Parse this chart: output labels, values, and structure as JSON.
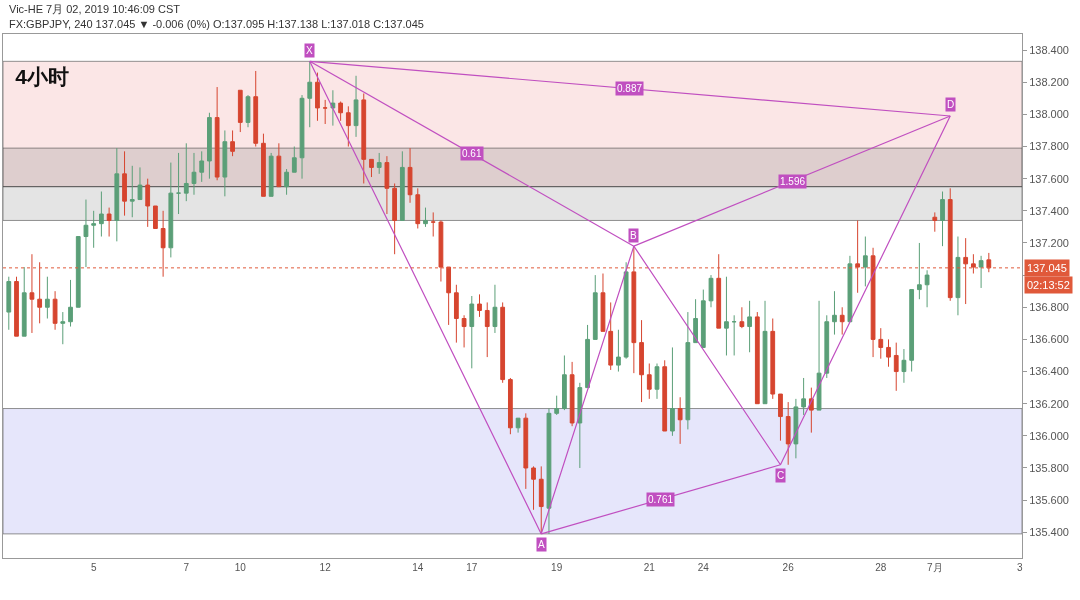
{
  "chart_data": {
    "type": "candlestick",
    "title": "4小时",
    "subtitle": "Vic-HE 7月 02, 2019 10:46:09 CST",
    "annotations": [
      "FX:GBPJPY, 240 137.045 ▼ -0.006 (0%) O:137.095 H:137.138 L:137.018 C:137.045",
      "02:13:52",
      "0.61",
      "0.887",
      "0.761",
      "1.596"
    ],
    "categories": [
      null,
      null,
      null,
      null,
      null,
      null,
      null,
      null,
      null,
      null,
      null,
      "5",
      null,
      null,
      null,
      null,
      null,
      null,
      null,
      null,
      null,
      null,
      null,
      "7",
      null,
      null,
      null,
      null,
      null,
      null,
      "10",
      null,
      null,
      null,
      null,
      null,
      null,
      null,
      null,
      null,
      null,
      "12",
      null,
      null,
      null,
      null,
      null,
      null,
      null,
      null,
      null,
      null,
      null,
      "14",
      null,
      null,
      null,
      null,
      null,
      null,
      "17",
      null,
      null,
      null,
      null,
      null,
      null,
      null,
      null,
      null,
      null,
      "19",
      null,
      null,
      null,
      null,
      null,
      null,
      null,
      null,
      null,
      null,
      null,
      "21",
      null,
      null,
      null,
      null,
      null,
      null,
      "24",
      null,
      null,
      null,
      null,
      null,
      null,
      null,
      null,
      null,
      null,
      "26",
      null,
      null,
      null,
      null,
      null,
      null,
      null,
      null,
      null,
      null,
      null,
      "28",
      null,
      null,
      null,
      null,
      null,
      null,
      "7月",
      null,
      null,
      null,
      null,
      null,
      null,
      null,
      null,
      null,
      null,
      "3"
    ],
    "ohlc": [
      [
        136.77,
        136.99,
        136.66,
        136.96
      ],
      [
        136.96,
        136.99,
        136.62,
        136.62
      ],
      [
        136.62,
        137.05,
        136.62,
        136.89
      ],
      [
        136.89,
        137.13,
        136.64,
        136.85
      ],
      [
        136.85,
        137.08,
        136.7,
        136.8
      ],
      [
        136.8,
        136.99,
        136.73,
        136.85
      ],
      [
        136.85,
        136.9,
        136.66,
        136.7
      ],
      [
        136.7,
        136.77,
        136.57,
        136.71
      ],
      [
        136.71,
        136.97,
        136.68,
        136.8
      ],
      [
        136.8,
        137.24,
        136.8,
        137.24
      ],
      [
        137.24,
        137.47,
        137.05,
        137.31
      ],
      [
        137.31,
        137.4,
        137.17,
        137.32
      ],
      [
        137.32,
        137.52,
        137.24,
        137.38
      ],
      [
        137.38,
        137.42,
        137.24,
        137.34
      ],
      [
        137.34,
        137.79,
        137.21,
        137.63
      ],
      [
        137.63,
        137.77,
        137.37,
        137.46
      ],
      [
        137.46,
        137.68,
        137.36,
        137.47
      ],
      [
        137.47,
        137.67,
        137.47,
        137.56
      ],
      [
        137.56,
        137.6,
        137.3,
        137.43
      ],
      [
        137.43,
        137.43,
        137.29,
        137.29
      ],
      [
        137.29,
        137.4,
        136.99,
        137.17
      ],
      [
        137.17,
        137.7,
        137.11,
        137.51
      ],
      [
        137.51,
        137.76,
        137.38,
        137.51
      ],
      [
        137.51,
        137.82,
        137.46,
        137.57
      ],
      [
        137.57,
        137.76,
        137.5,
        137.64
      ],
      [
        137.64,
        137.77,
        137.58,
        137.71
      ],
      [
        137.71,
        138.01,
        137.6,
        137.98
      ],
      [
        137.98,
        138.17,
        137.59,
        137.61
      ],
      [
        137.61,
        137.9,
        137.49,
        137.83
      ],
      [
        137.83,
        137.9,
        137.74,
        137.77
      ],
      [
        138.15,
        138.15,
        137.89,
        137.95
      ],
      [
        137.95,
        138.12,
        137.92,
        138.11
      ],
      [
        138.11,
        138.27,
        137.8,
        137.82
      ],
      [
        137.82,
        137.88,
        137.49,
        137.49
      ],
      [
        137.49,
        137.76,
        137.49,
        137.74
      ],
      [
        137.74,
        137.82,
        137.55,
        137.55
      ],
      [
        137.55,
        137.66,
        137.5,
        137.64
      ],
      [
        137.64,
        137.8,
        137.64,
        137.73
      ],
      [
        137.73,
        138.12,
        137.6,
        138.1
      ],
      [
        138.1,
        138.33,
        137.92,
        138.2
      ],
      [
        138.2,
        138.26,
        137.96,
        138.04
      ],
      [
        138.04,
        138.09,
        137.94,
        138.04
      ],
      [
        138.04,
        138.15,
        137.93,
        138.07
      ],
      [
        138.07,
        138.08,
        137.96,
        138.01
      ],
      [
        138.01,
        138.05,
        137.8,
        137.93
      ],
      [
        137.93,
        138.24,
        137.86,
        138.09
      ],
      [
        138.09,
        138.13,
        137.57,
        137.72
      ],
      [
        137.72,
        137.72,
        137.61,
        137.67
      ],
      [
        137.67,
        137.76,
        137.63,
        137.7
      ],
      [
        137.7,
        137.74,
        137.38,
        137.54
      ],
      [
        137.54,
        137.57,
        137.13,
        137.34
      ],
      [
        137.34,
        137.77,
        137.34,
        137.67
      ],
      [
        137.67,
        137.79,
        137.45,
        137.5
      ],
      [
        137.5,
        137.54,
        137.29,
        137.32
      ],
      [
        137.32,
        137.42,
        137.3,
        137.34
      ],
      [
        137.33,
        137.39,
        137.24,
        137.33
      ],
      [
        137.33,
        137.34,
        136.96,
        137.05
      ],
      [
        137.05,
        137.05,
        136.69,
        136.89
      ],
      [
        136.89,
        136.94,
        136.58,
        136.73
      ],
      [
        136.73,
        136.75,
        136.55,
        136.68
      ],
      [
        136.68,
        136.87,
        136.42,
        136.82
      ],
      [
        136.82,
        136.88,
        136.74,
        136.78
      ],
      [
        136.78,
        136.83,
        136.49,
        136.68
      ],
      [
        136.68,
        136.94,
        136.64,
        136.8
      ],
      [
        136.8,
        136.83,
        136.33,
        136.35
      ],
      [
        136.35,
        136.36,
        136.01,
        136.05
      ],
      [
        136.05,
        136.11,
        136.02,
        136.11
      ],
      [
        136.11,
        136.14,
        135.67,
        135.8
      ],
      [
        135.8,
        135.81,
        135.54,
        135.73
      ],
      [
        135.73,
        135.81,
        135.39,
        135.56
      ],
      [
        135.55,
        136.17,
        135.39,
        136.14
      ],
      [
        136.14,
        136.25,
        136.13,
        136.17
      ],
      [
        136.17,
        136.5,
        136.16,
        136.38
      ],
      [
        136.38,
        136.46,
        136.06,
        136.08
      ],
      [
        136.08,
        136.33,
        135.8,
        136.3
      ],
      [
        136.3,
        136.69,
        136.3,
        136.6
      ],
      [
        136.6,
        137.0,
        136.6,
        136.89
      ],
      [
        136.89,
        137.01,
        136.65,
        136.65
      ],
      [
        136.65,
        136.83,
        136.41,
        136.44
      ],
      [
        136.44,
        136.66,
        136.4,
        136.49
      ],
      [
        136.49,
        137.08,
        136.48,
        137.02
      ],
      [
        137.02,
        137.18,
        136.39,
        136.58
      ],
      [
        136.58,
        136.72,
        136.21,
        136.38
      ],
      [
        136.38,
        136.45,
        136.23,
        136.29
      ],
      [
        136.29,
        136.45,
        136.23,
        136.43
      ],
      [
        136.43,
        136.47,
        136.03,
        136.03
      ],
      [
        136.03,
        136.55,
        136.0,
        136.17
      ],
      [
        136.17,
        136.24,
        135.95,
        136.1
      ],
      [
        136.1,
        136.77,
        136.04,
        136.58
      ],
      [
        136.58,
        136.85,
        136.58,
        136.73
      ],
      [
        136.55,
        136.91,
        136.55,
        136.84
      ],
      [
        136.84,
        137.0,
        136.8,
        136.98
      ],
      [
        136.98,
        137.13,
        136.67,
        136.67
      ],
      [
        136.67,
        136.99,
        136.5,
        136.71
      ],
      [
        136.71,
        136.75,
        136.5,
        136.71
      ],
      [
        136.71,
        136.8,
        136.67,
        136.68
      ],
      [
        136.68,
        136.84,
        136.52,
        136.74
      ],
      [
        136.74,
        136.77,
        136.2,
        136.2
      ],
      [
        136.2,
        136.84,
        136.2,
        136.65
      ],
      [
        136.65,
        136.73,
        136.23,
        136.26
      ],
      [
        136.26,
        136.26,
        135.97,
        136.12
      ],
      [
        136.12,
        136.21,
        135.82,
        135.95
      ],
      [
        135.95,
        136.23,
        135.86,
        136.18
      ],
      [
        136.18,
        136.36,
        136.13,
        136.23
      ],
      [
        136.23,
        136.3,
        136.02,
        136.16
      ],
      [
        136.16,
        136.84,
        136.16,
        136.39
      ],
      [
        136.39,
        136.75,
        136.36,
        136.71
      ],
      [
        136.71,
        136.9,
        136.63,
        136.75
      ],
      [
        136.75,
        136.8,
        136.63,
        136.71
      ],
      [
        136.71,
        137.12,
        136.71,
        137.07
      ],
      [
        137.07,
        137.34,
        136.89,
        137.05
      ],
      [
        137.05,
        137.24,
        136.93,
        137.12
      ],
      [
        137.12,
        137.17,
        136.49,
        136.6
      ],
      [
        136.6,
        136.67,
        136.48,
        136.55
      ],
      [
        136.55,
        136.6,
        136.43,
        136.49
      ],
      [
        136.5,
        136.58,
        136.28,
        136.4
      ],
      [
        136.4,
        136.54,
        136.33,
        136.47
      ],
      [
        136.47,
        136.91,
        136.4,
        136.91
      ],
      [
        136.91,
        137.2,
        136.85,
        136.94
      ],
      [
        136.94,
        137.03,
        136.8,
        137.0
      ],
      [
        137.36,
        137.39,
        137.27,
        137.34
      ],
      [
        137.34,
        137.52,
        137.18,
        137.47
      ],
      [
        137.47,
        137.54,
        136.84,
        136.86
      ],
      [
        136.86,
        137.24,
        136.75,
        137.11
      ],
      [
        137.11,
        137.23,
        136.82,
        137.07
      ],
      [
        137.07,
        137.13,
        137.01,
        137.05
      ],
      [
        137.05,
        137.12,
        136.92,
        137.09
      ],
      [
        137.095,
        137.138,
        137.018,
        137.045
      ],
      null,
      null,
      null,
      null
    ],
    "series": [
      {
        "type": "line",
        "color": "#c04fc0",
        "values": [
          null,
          null,
          null,
          null,
          null,
          null,
          null,
          null,
          null,
          null,
          null,
          null,
          null,
          null,
          null,
          null,
          null,
          null,
          null,
          null,
          null,
          null,
          null,
          null,
          null,
          null,
          null,
          null,
          null,
          null,
          null,
          null,
          null,
          null,
          null,
          null,
          null,
          null,
          null,
          138.33,
          null,
          null,
          null,
          null,
          null,
          null,
          null,
          null,
          null,
          null,
          null,
          null,
          null,
          null,
          null,
          null,
          null,
          null,
          null,
          null,
          null,
          null,
          null,
          null,
          null,
          null,
          null,
          null,
          null,
          135.39,
          null,
          null,
          null,
          null,
          null,
          null,
          null,
          null,
          null,
          null,
          null,
          137.18,
          null,
          null,
          null,
          null,
          null,
          null,
          null,
          null,
          null,
          null,
          null,
          null,
          null,
          null,
          null,
          null,
          null,
          null,
          135.82,
          null,
          null,
          null,
          null,
          null,
          null,
          null,
          null,
          null,
          null,
          null,
          null,
          null,
          null,
          null,
          null,
          null,
          null,
          null,
          null,
          null,
          137.99,
          null,
          null,
          null,
          null,
          null,
          null,
          null,
          null,
          null
        ],
        "value_labels": [
          null,
          null,
          null,
          null,
          null,
          null,
          null,
          null,
          null,
          null,
          null,
          null,
          null,
          null,
          null,
          null,
          null,
          null,
          null,
          null,
          null,
          null,
          null,
          null,
          null,
          null,
          null,
          null,
          null,
          null,
          null,
          null,
          null,
          null,
          null,
          null,
          null,
          null,
          null,
          "X",
          null,
          null,
          null,
          null,
          null,
          null,
          null,
          null,
          null,
          null,
          null,
          null,
          null,
          null,
          null,
          null,
          null,
          null,
          null,
          null,
          null,
          null,
          null,
          null,
          null,
          null,
          null,
          null,
          null,
          "A",
          null,
          null,
          null,
          null,
          null,
          null,
          null,
          null,
          null,
          null,
          null,
          "B",
          null,
          null,
          null,
          null,
          null,
          null,
          null,
          null,
          null,
          null,
          null,
          null,
          null,
          null,
          null,
          null,
          null,
          null,
          "C",
          null,
          null,
          null,
          null,
          null,
          null,
          null,
          null,
          null,
          null,
          null,
          null,
          null,
          null,
          null,
          null,
          null,
          null,
          null,
          null,
          null,
          "D",
          null,
          null,
          null,
          null,
          null,
          null,
          null,
          null,
          null
        ]
      },
      {
        "type": "line",
        "color": "#c04fc0",
        "values": [
          null,
          null,
          null,
          null,
          null,
          null,
          null,
          null,
          null,
          null,
          null,
          null,
          null,
          null,
          null,
          null,
          null,
          null,
          null,
          null,
          null,
          null,
          null,
          null,
          null,
          null,
          null,
          null,
          null,
          null,
          null,
          null,
          null,
          null,
          null,
          null,
          null,
          null,
          null,
          138.33,
          null,
          null,
          null,
          null,
          null,
          null,
          null,
          null,
          null,
          null,
          null,
          null,
          null,
          null,
          null,
          null,
          null,
          null,
          null,
          null,
          null,
          null,
          null,
          null,
          null,
          null,
          null,
          null,
          null,
          null,
          null,
          null,
          null,
          null,
          null,
          null,
          null,
          null,
          null,
          null,
          null,
          137.18,
          null,
          null,
          null,
          null,
          null,
          null,
          null,
          null,
          null,
          null,
          null,
          null,
          null,
          null,
          null,
          null,
          null,
          null,
          null,
          null,
          null,
          null,
          null,
          null,
          null,
          null,
          null,
          null,
          null,
          null,
          null,
          null,
          null,
          null,
          null,
          null,
          null,
          null,
          null,
          null,
          null,
          null,
          null,
          null,
          null,
          null,
          null,
          null,
          null,
          null
        ]
      },
      {
        "type": "line",
        "color": "#c04fc0",
        "values": [
          null,
          null,
          null,
          null,
          null,
          null,
          null,
          null,
          null,
          null,
          null,
          null,
          null,
          null,
          null,
          null,
          null,
          null,
          null,
          null,
          null,
          null,
          null,
          null,
          null,
          null,
          null,
          null,
          null,
          null,
          null,
          null,
          null,
          null,
          null,
          null,
          null,
          null,
          null,
          138.33,
          null,
          null,
          null,
          null,
          null,
          null,
          null,
          null,
          null,
          null,
          null,
          null,
          null,
          null,
          null,
          null,
          null,
          null,
          null,
          null,
          null,
          null,
          null,
          null,
          null,
          null,
          null,
          null,
          null,
          null,
          null,
          null,
          null,
          null,
          null,
          null,
          null,
          null,
          null,
          null,
          null,
          null,
          null,
          null,
          null,
          null,
          null,
          null,
          null,
          null,
          null,
          null,
          null,
          null,
          null,
          null,
          null,
          null,
          null,
          null,
          null,
          null,
          null,
          null,
          null,
          null,
          null,
          null,
          null,
          null,
          null,
          null,
          null,
          null,
          null,
          null,
          null,
          null,
          null,
          null,
          null,
          null,
          137.99,
          null,
          null,
          null,
          null,
          null,
          null,
          null,
          null,
          null
        ]
      },
      {
        "type": "line",
        "color": "#c04fc0",
        "values": [
          null,
          null,
          null,
          null,
          null,
          null,
          null,
          null,
          null,
          null,
          null,
          null,
          null,
          null,
          null,
          null,
          null,
          null,
          null,
          null,
          null,
          null,
          null,
          null,
          null,
          null,
          null,
          null,
          null,
          null,
          null,
          null,
          null,
          null,
          null,
          null,
          null,
          null,
          null,
          null,
          null,
          null,
          null,
          null,
          null,
          null,
          null,
          null,
          null,
          null,
          null,
          null,
          null,
          null,
          null,
          null,
          null,
          null,
          null,
          null,
          null,
          null,
          null,
          null,
          null,
          null,
          null,
          null,
          null,
          135.39,
          null,
          null,
          null,
          null,
          null,
          null,
          null,
          null,
          null,
          null,
          null,
          null,
          null,
          null,
          null,
          null,
          null,
          null,
          null,
          null,
          null,
          null,
          null,
          null,
          null,
          null,
          null,
          null,
          null,
          null,
          135.82,
          null,
          null,
          null,
          null,
          null,
          null,
          null,
          null,
          null,
          null,
          null,
          null,
          null,
          null,
          null,
          null,
          null,
          null,
          null,
          null,
          null,
          null,
          null,
          null,
          null,
          null,
          null,
          null,
          null,
          null,
          null
        ]
      },
      {
        "type": "line",
        "color": "#c04fc0",
        "values": [
          null,
          null,
          null,
          null,
          null,
          null,
          null,
          null,
          null,
          null,
          null,
          null,
          null,
          null,
          null,
          null,
          null,
          null,
          null,
          null,
          null,
          null,
          null,
          null,
          null,
          null,
          null,
          null,
          null,
          null,
          null,
          null,
          null,
          null,
          null,
          null,
          null,
          null,
          null,
          null,
          null,
          null,
          null,
          null,
          null,
          null,
          null,
          null,
          null,
          null,
          null,
          null,
          null,
          null,
          null,
          null,
          null,
          null,
          null,
          null,
          null,
          null,
          null,
          null,
          null,
          null,
          null,
          null,
          null,
          null,
          null,
          null,
          null,
          null,
          null,
          null,
          null,
          null,
          null,
          null,
          null,
          137.18,
          null,
          null,
          null,
          null,
          null,
          null,
          null,
          null,
          null,
          null,
          null,
          null,
          null,
          null,
          null,
          null,
          null,
          null,
          null,
          null,
          null,
          null,
          null,
          null,
          null,
          null,
          null,
          null,
          null,
          null,
          null,
          null,
          null,
          null,
          null,
          null,
          null,
          null,
          null,
          null,
          137.99,
          null,
          null,
          null,
          null,
          null,
          null,
          null,
          null,
          null
        ]
      }
    ],
    "bands": [
      {
        "axis": "y",
        "from": 137.55,
        "to": 138.33,
        "color": "#fadcdc"
      },
      {
        "axis": "y",
        "from": 135.39,
        "to": 136.17,
        "color": "#dcdcfa"
      },
      {
        "axis": "y",
        "from": 137.55,
        "to": 137.79,
        "color": "#d2c4c4"
      },
      {
        "axis": "y",
        "from": 137.34,
        "to": 137.55,
        "color": "#dadada"
      }
    ],
    "ref_lines": [
      {
        "axis": "y",
        "value": 137.045,
        "label": "137.045",
        "color": "#e0593a",
        "line_style": "dotted"
      }
    ],
    "ylim": [
      135.24,
      138.5
    ],
    "yticks": [
      {
        "value": 135.4,
        "label": "135.400"
      },
      {
        "value": 135.6,
        "label": "135.600"
      },
      {
        "value": 135.8,
        "label": "135.800"
      },
      {
        "value": 136.0,
        "label": "136.000"
      },
      {
        "value": 136.2,
        "label": "136.200"
      },
      {
        "value": 136.4,
        "label": "136.400"
      },
      {
        "value": 136.6,
        "label": "136.600"
      },
      {
        "value": 136.8,
        "label": "136.800"
      },
      {
        "value": 137.0,
        "label": null
      },
      {
        "value": 137.2,
        "label": "137.200"
      },
      {
        "value": 137.4,
        "label": "137.400"
      },
      {
        "value": 137.6,
        "label": "137.600"
      },
      {
        "value": 137.8,
        "label": "137.800"
      },
      {
        "value": 138.0,
        "label": "138.000"
      },
      {
        "value": 138.2,
        "label": "138.200"
      },
      {
        "value": 138.4,
        "label": "138.400"
      }
    ]
  }
}
